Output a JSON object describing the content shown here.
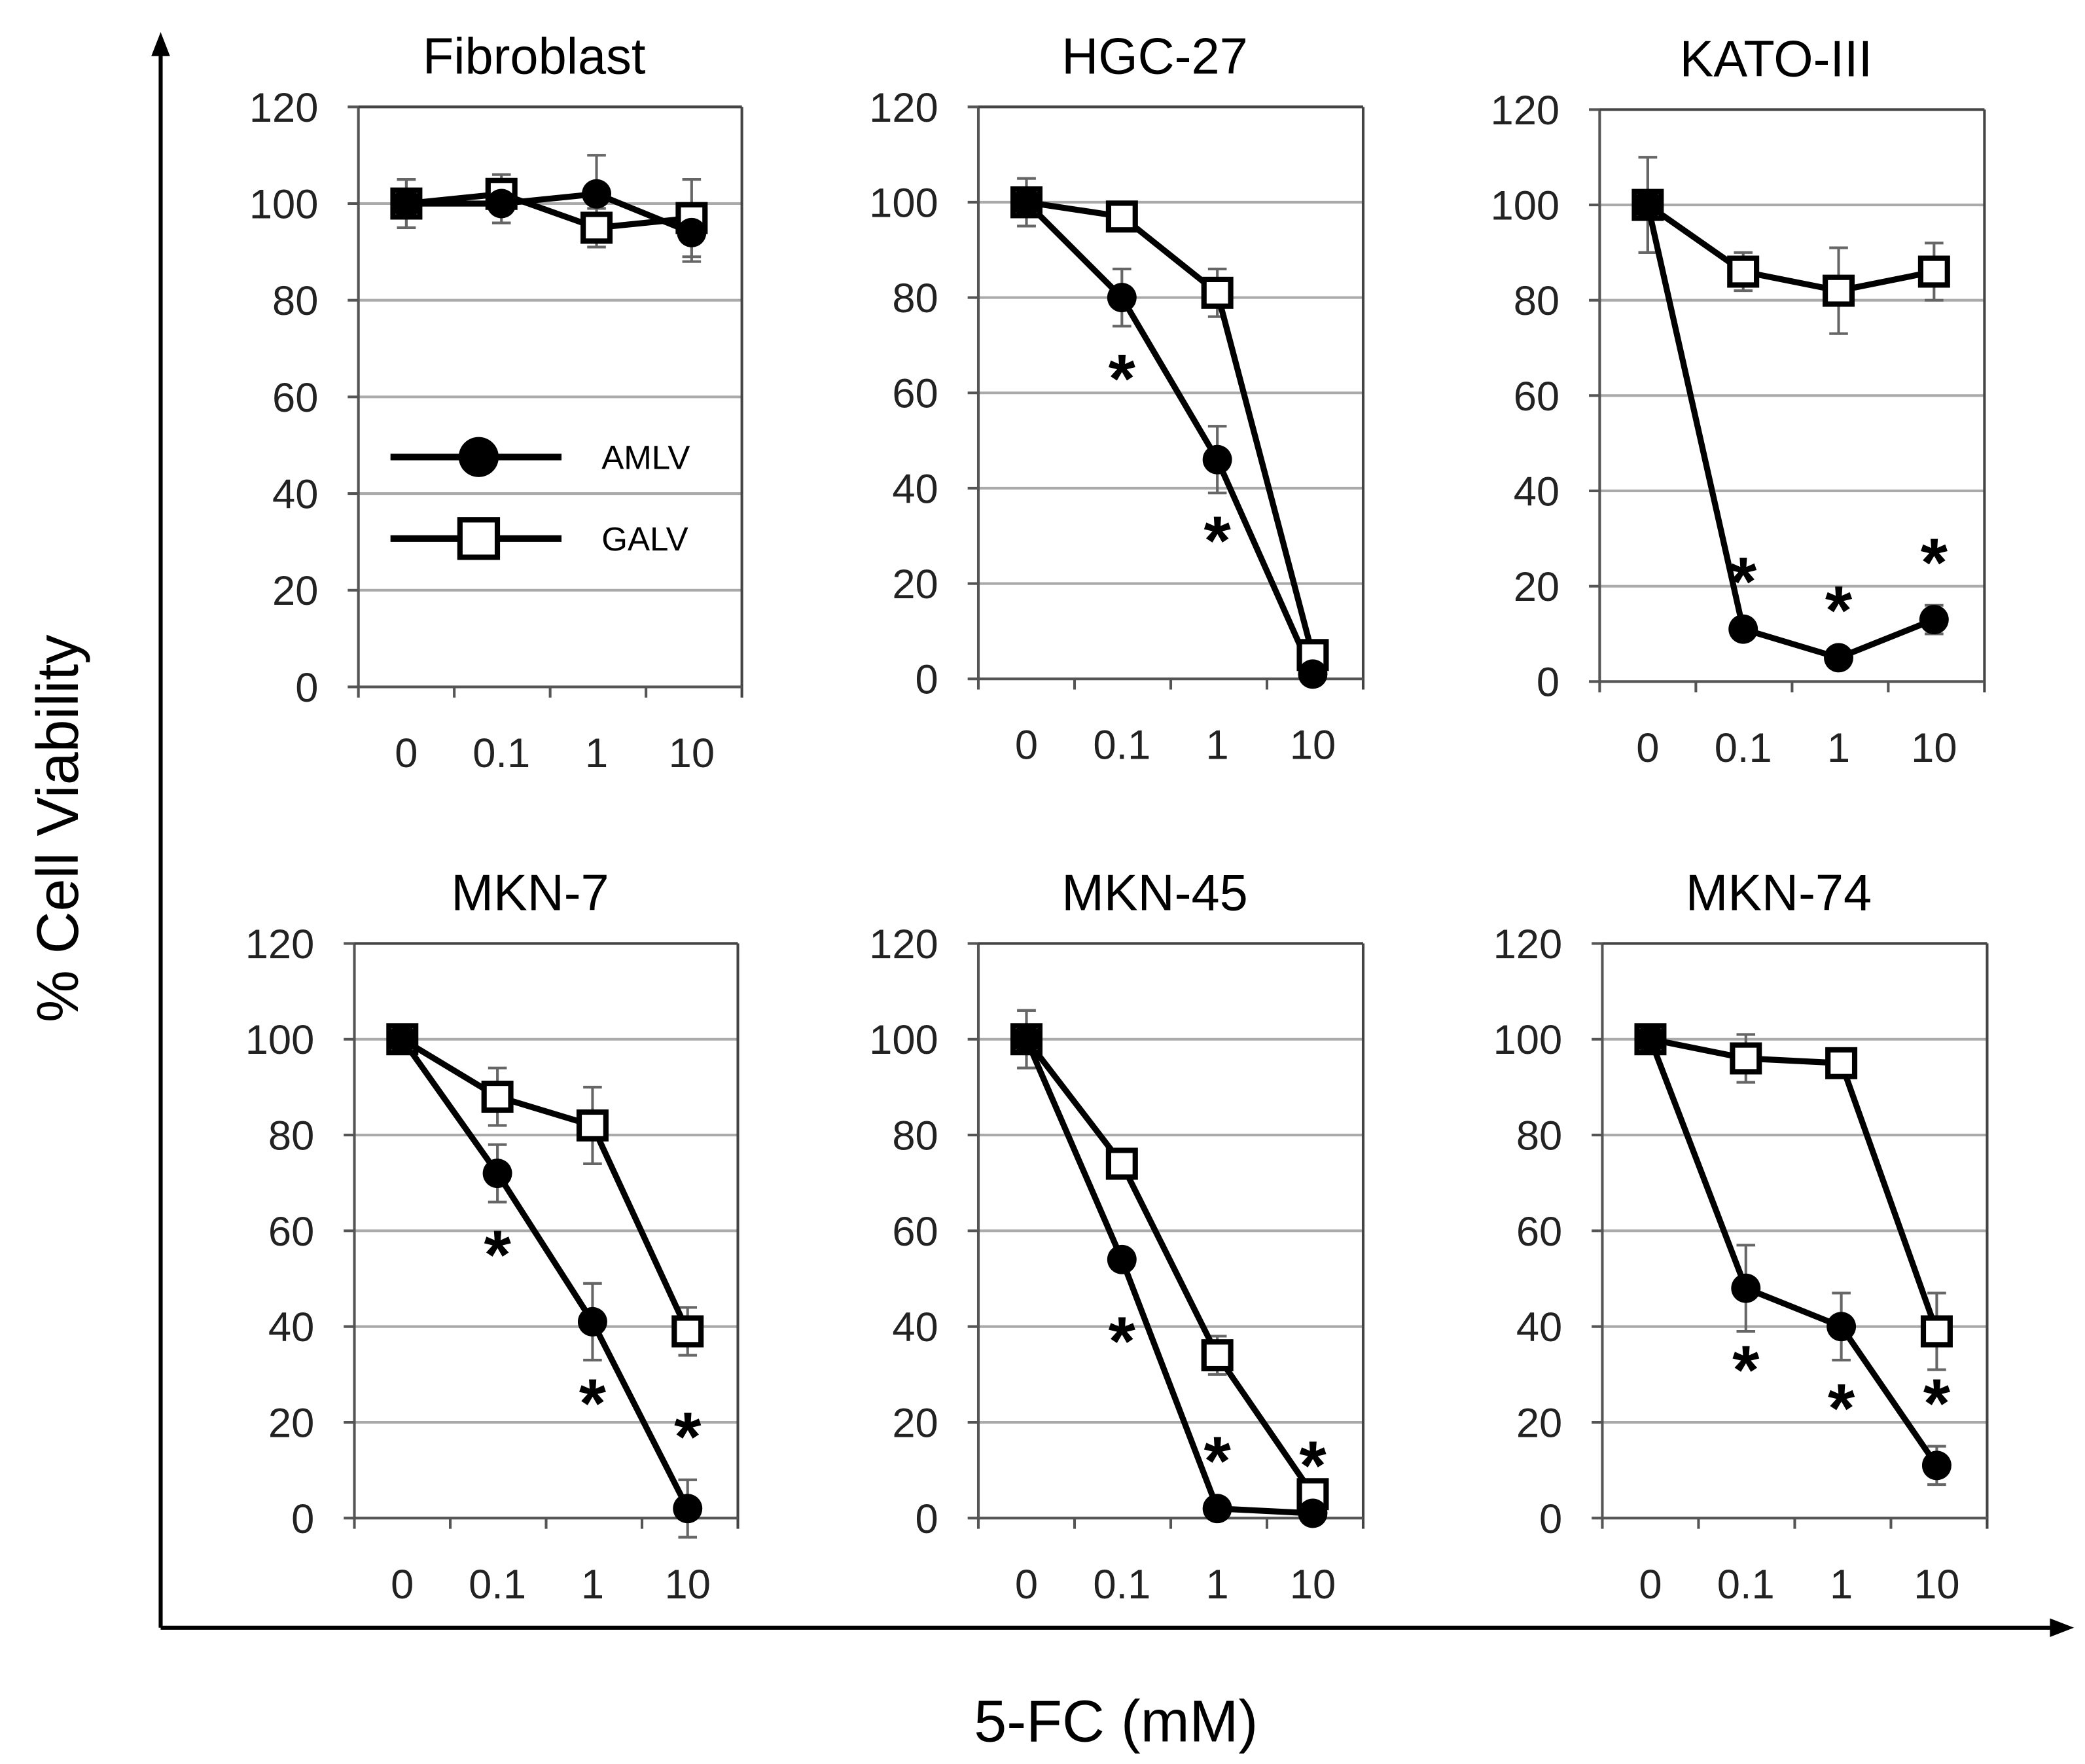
{
  "chart_data": {
    "type": "line",
    "xlabel": "5-FC (mM)",
    "ylabel": "% Cell Viability",
    "categories": [
      "0",
      "0.1",
      "1",
      "10"
    ],
    "yticks": [
      "0",
      "20",
      "40",
      "60",
      "80",
      "100",
      "120"
    ],
    "ylim": [
      0,
      120
    ],
    "grid": true,
    "legend": {
      "placement": "inside first panel, middle-left",
      "entries": [
        "AMLV",
        "GALV"
      ]
    },
    "significance_marker": "*",
    "panels": [
      {
        "title": "Fibroblast",
        "series": [
          {
            "name": "AMLV",
            "marker": "filled-circle",
            "values": [
              100,
              100,
              102,
              94
            ],
            "errors": [
              5,
              4,
              8,
              6
            ]
          },
          {
            "name": "GALV",
            "marker": "open-square",
            "values": [
              100,
              102,
              95,
              97
            ],
            "errors": [
              5,
              4,
              4,
              8
            ]
          }
        ],
        "significant": [
          false,
          false,
          false,
          false
        ]
      },
      {
        "title": "HGC-27",
        "series": [
          {
            "name": "AMLV",
            "marker": "filled-circle",
            "values": [
              100,
              80,
              46,
              1
            ],
            "errors": [
              5,
              6,
              7,
              1
            ]
          },
          {
            "name": "GALV",
            "marker": "open-square",
            "values": [
              100,
              97,
              81,
              5
            ],
            "errors": [
              5,
              2,
              5,
              2
            ]
          }
        ],
        "significant": [
          false,
          true,
          true,
          false
        ]
      },
      {
        "title": "KATO-III",
        "series": [
          {
            "name": "AMLV",
            "marker": "filled-circle",
            "values": [
              100,
              11,
              5,
              13
            ],
            "errors": [
              10,
              1,
              1,
              3
            ]
          },
          {
            "name": "GALV",
            "marker": "open-square",
            "values": [
              100,
              86,
              82,
              86
            ],
            "errors": [
              10,
              4,
              9,
              6
            ]
          }
        ],
        "significant": [
          false,
          true,
          true,
          true
        ]
      },
      {
        "title": "MKN-7",
        "series": [
          {
            "name": "AMLV",
            "marker": "filled-circle",
            "values": [
              100,
              72,
              41,
              2
            ],
            "errors": [
              2,
              6,
              8,
              6
            ]
          },
          {
            "name": "GALV",
            "marker": "open-square",
            "values": [
              100,
              88,
              82,
              39
            ],
            "errors": [
              2,
              6,
              8,
              5
            ]
          }
        ],
        "significant": [
          false,
          true,
          true,
          true
        ]
      },
      {
        "title": "MKN-45",
        "series": [
          {
            "name": "AMLV",
            "marker": "filled-circle",
            "values": [
              100,
              54,
              2,
              1
            ],
            "errors": [
              6,
              2,
              1,
              1
            ]
          },
          {
            "name": "GALV",
            "marker": "open-square",
            "values": [
              100,
              74,
              34,
              5
            ],
            "errors": [
              6,
              2,
              4,
              2
            ]
          }
        ],
        "significant": [
          false,
          true,
          true,
          true
        ]
      },
      {
        "title": "MKN-74",
        "series": [
          {
            "name": "AMLV",
            "marker": "filled-circle",
            "values": [
              100,
              48,
              40,
              11
            ],
            "errors": [
              2,
              9,
              7,
              4
            ]
          },
          {
            "name": "GALV",
            "marker": "open-square",
            "values": [
              100,
              96,
              95,
              39
            ],
            "errors": [
              2,
              5,
              2,
              8
            ]
          }
        ],
        "significant": [
          false,
          true,
          true,
          true
        ]
      }
    ]
  }
}
